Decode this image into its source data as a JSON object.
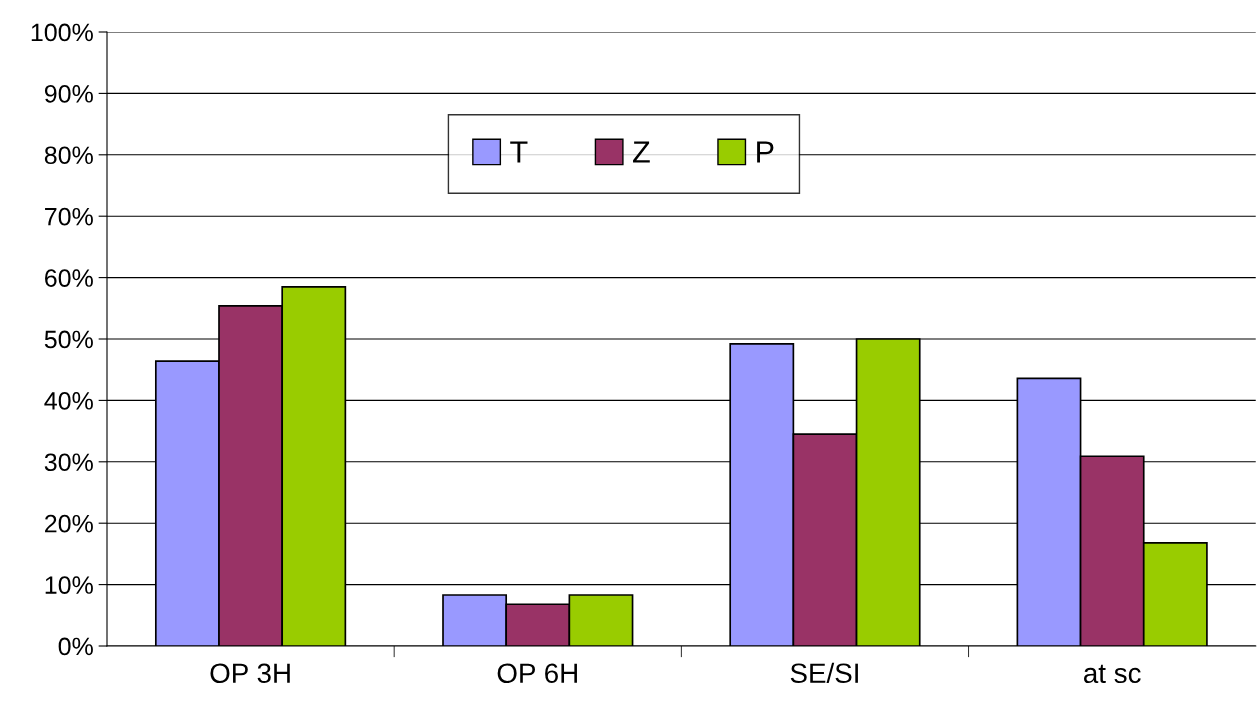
{
  "chart_data": {
    "type": "bar",
    "categories": [
      "OP 3H",
      "OP 6H",
      "SE/SI",
      "at sc"
    ],
    "series": [
      {
        "name": "T",
        "color": "#9999ff",
        "values": [
          46.4,
          8.3,
          49.2,
          43.6
        ]
      },
      {
        "name": "Z",
        "color": "#993366",
        "values": [
          55.4,
          6.8,
          34.5,
          30.9
        ]
      },
      {
        "name": "P",
        "color": "#99cc00",
        "values": [
          58.5,
          8.3,
          50.0,
          16.8
        ]
      }
    ],
    "ylim": [
      0,
      100
    ],
    "yticks": [
      {
        "value": 0,
        "label": "0%"
      },
      {
        "value": 10,
        "label": "10%"
      },
      {
        "value": 20,
        "label": "20%"
      },
      {
        "value": 30,
        "label": "30%"
      },
      {
        "value": 40,
        "label": "40%"
      },
      {
        "value": 50,
        "label": "50%"
      },
      {
        "value": 60,
        "label": "60%"
      },
      {
        "value": 70,
        "label": "70%"
      },
      {
        "value": 80,
        "label": "80%"
      },
      {
        "value": 90,
        "label": "90%"
      },
      {
        "value": 100,
        "label": "100%"
      }
    ],
    "grid": "y",
    "legend": "top"
  }
}
